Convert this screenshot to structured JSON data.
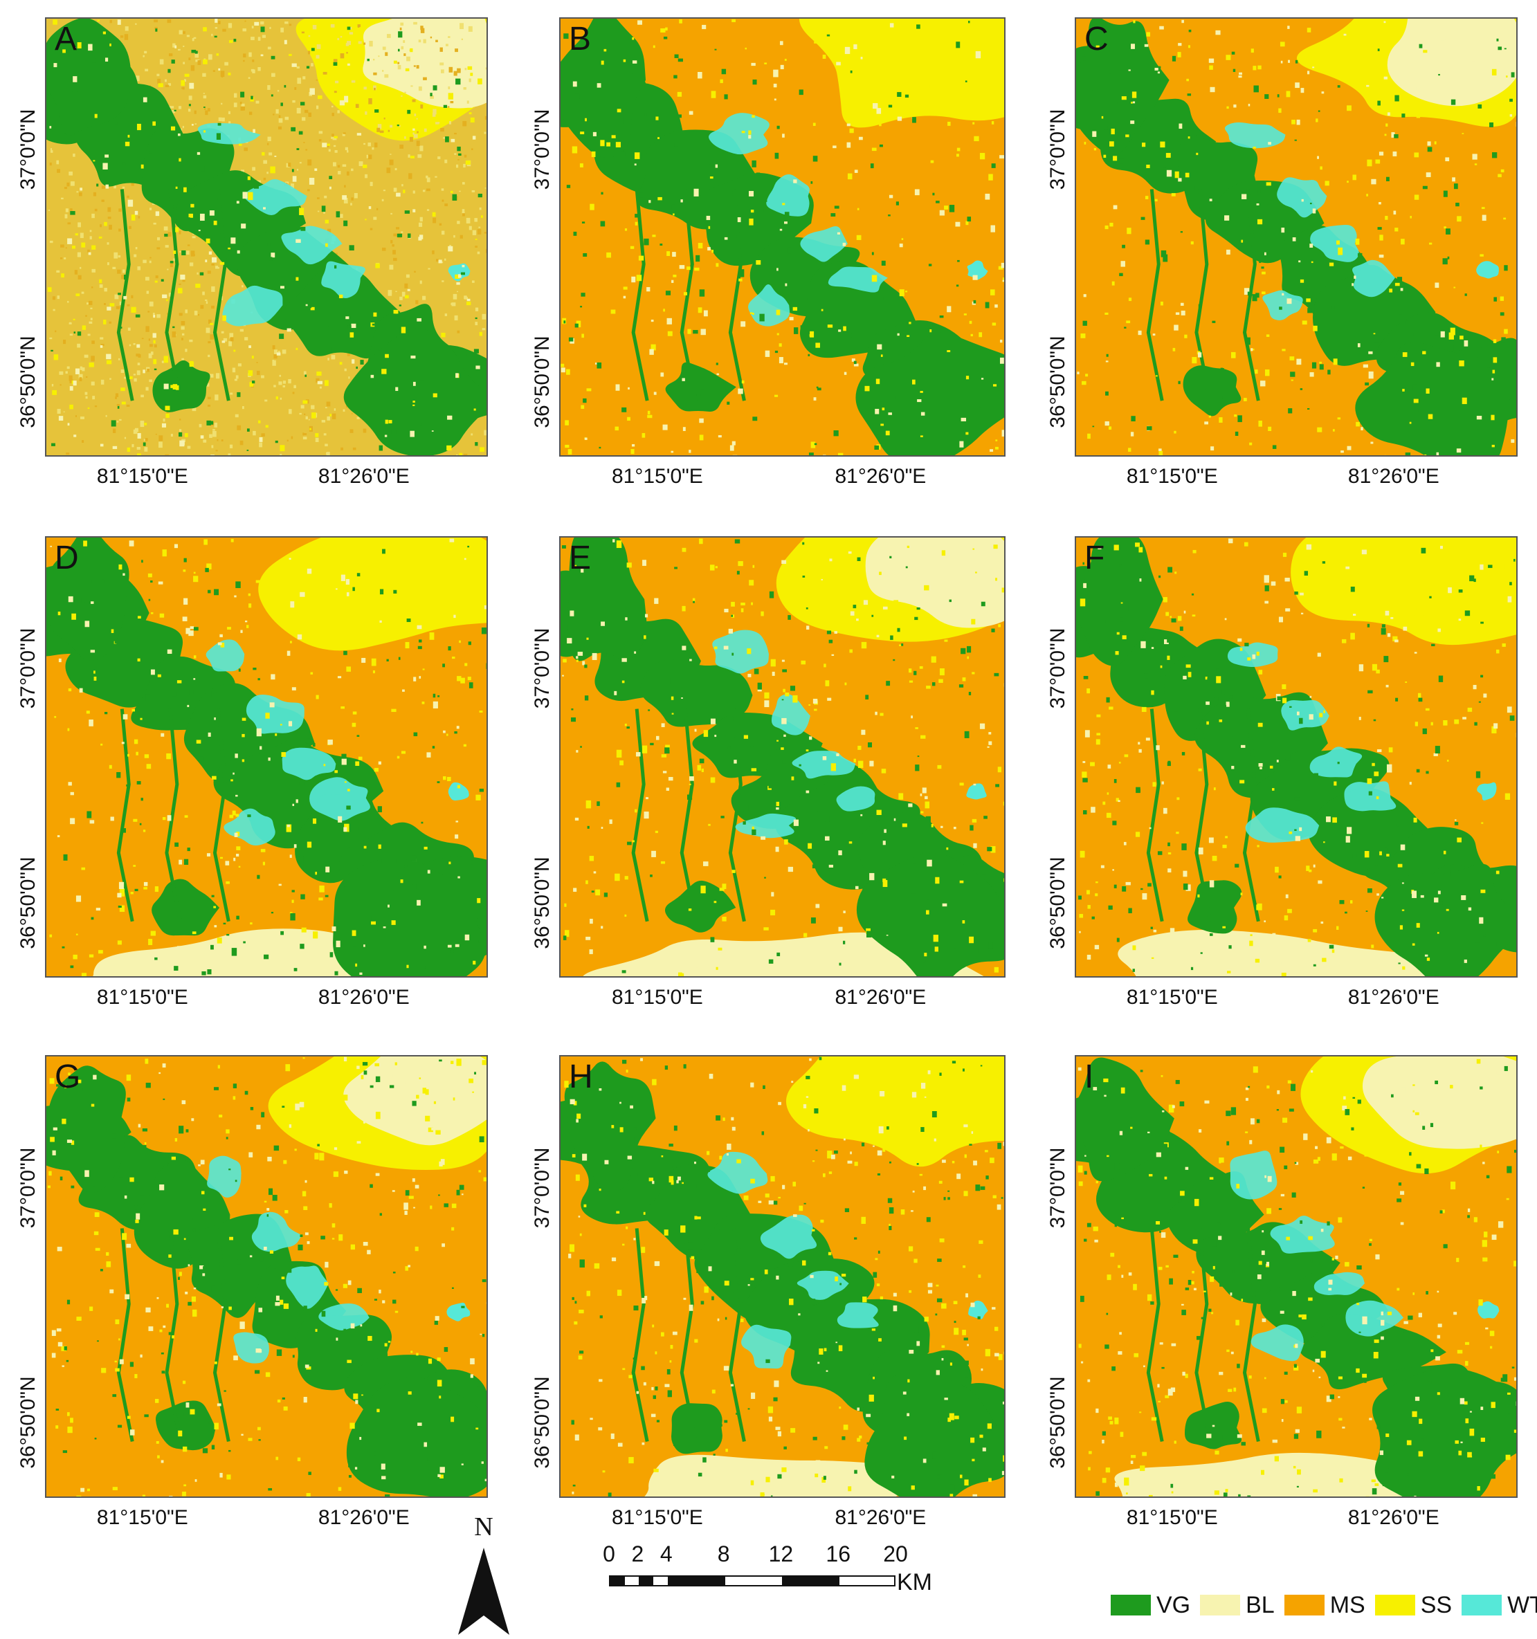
{
  "classes": [
    {
      "code": "VG",
      "color": "#1e9b1e"
    },
    {
      "code": "BL",
      "color": "#f7f3b0"
    },
    {
      "code": "MS",
      "color": "#f5a300"
    },
    {
      "code": "SS",
      "color": "#f7f000"
    },
    {
      "code": "WT",
      "color": "#56e8d8"
    }
  ],
  "lon_labels": [
    "81°15'0\"E",
    "81°26'0\"E"
  ],
  "lat_labels": [
    "37°0'0\"N",
    "36°50'0\"N"
  ],
  "panels": [
    {
      "letter": "A",
      "base": "#e6c33a"
    },
    {
      "letter": "B",
      "base": "#f5a300"
    },
    {
      "letter": "C",
      "base": "#f5a300"
    },
    {
      "letter": "D",
      "base": "#f5a300"
    },
    {
      "letter": "E",
      "base": "#f5a300"
    },
    {
      "letter": "F",
      "base": "#f5a300"
    },
    {
      "letter": "G",
      "base": "#f5a300"
    },
    {
      "letter": "H",
      "base": "#f5a300"
    },
    {
      "letter": "I",
      "base": "#f5a300"
    }
  ],
  "north_label": "N",
  "scale": {
    "ticks": [
      "0",
      "2",
      "4",
      "8",
      "12",
      "16",
      "20"
    ],
    "unit": "KM"
  }
}
